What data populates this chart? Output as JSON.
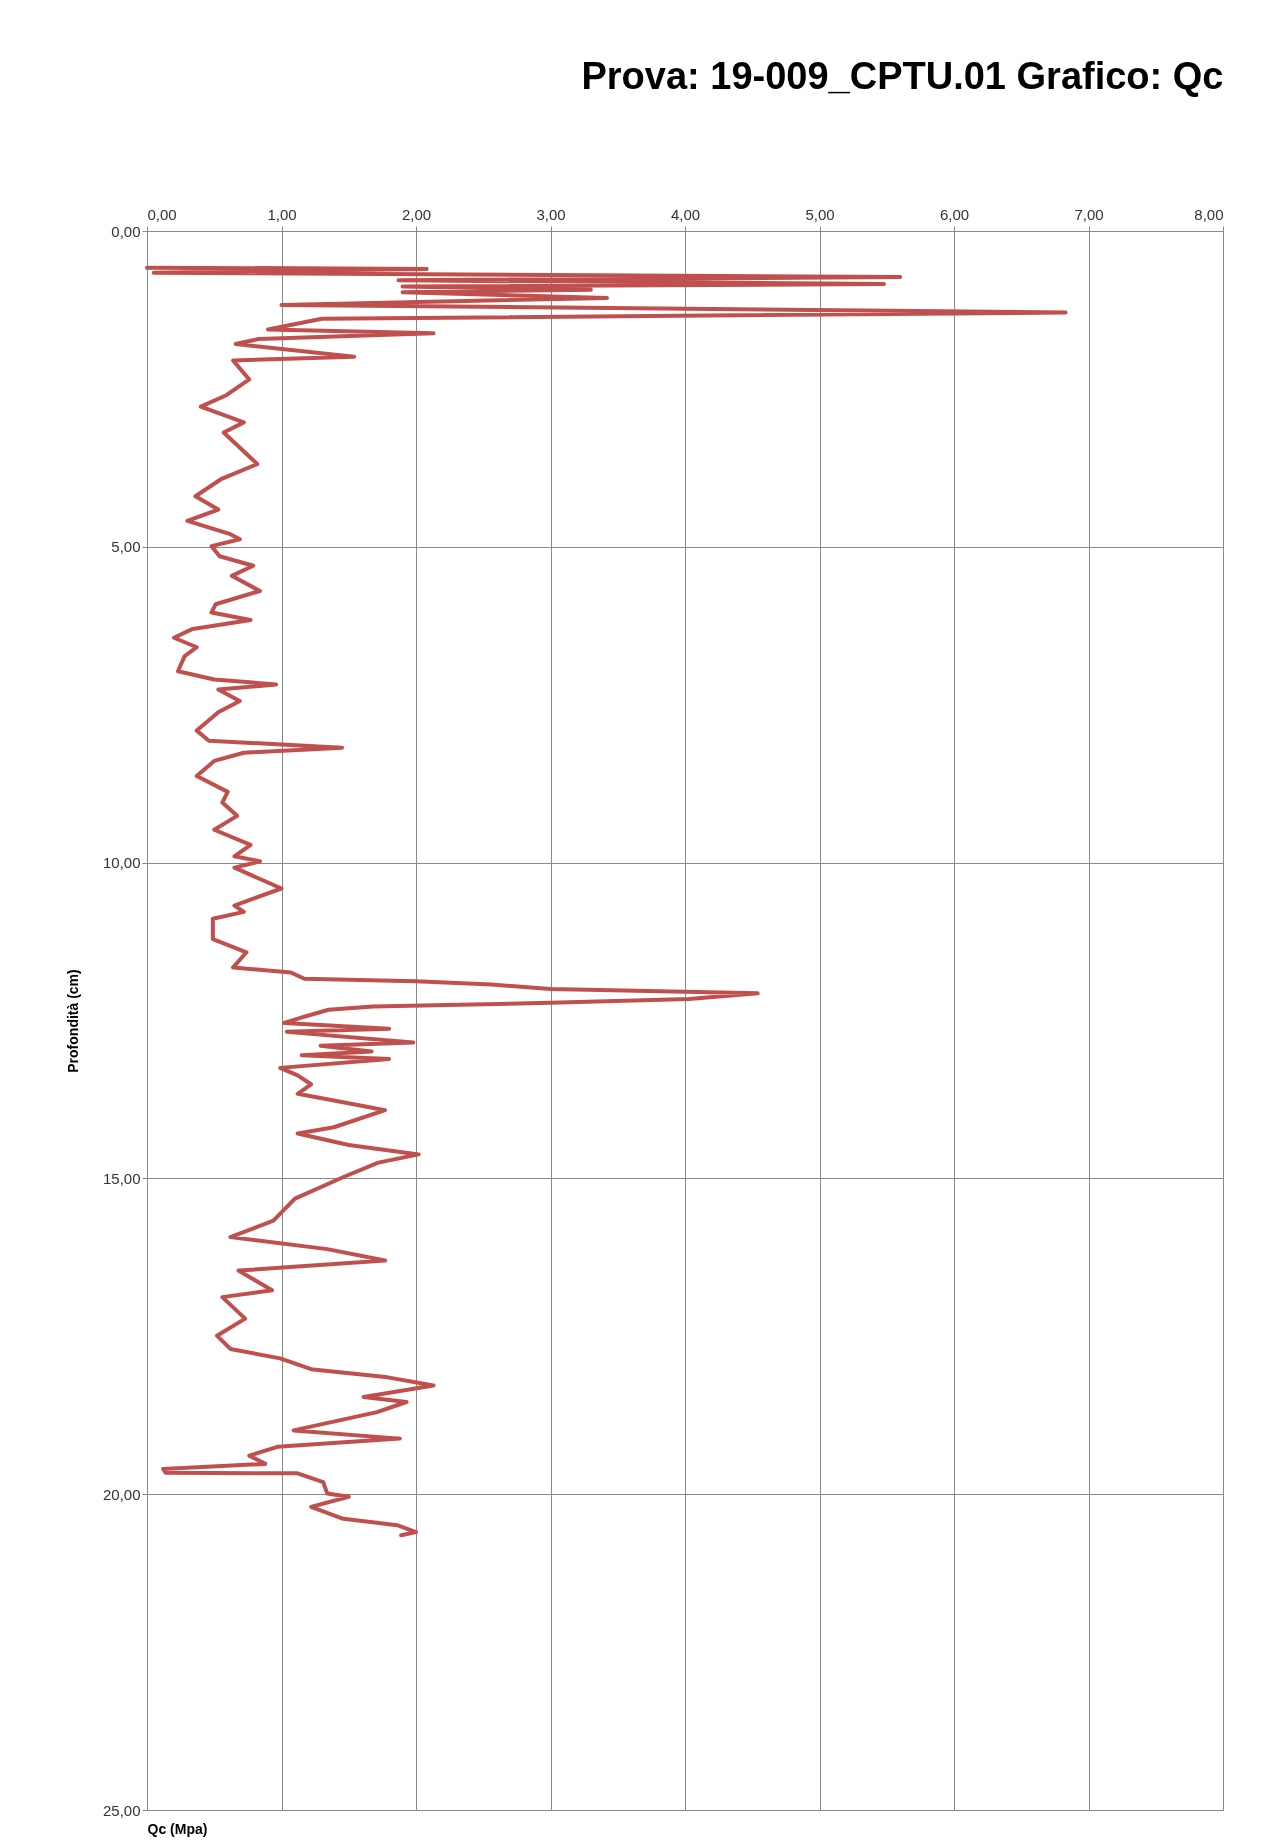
{
  "chart_data": {
    "type": "line",
    "title": "Prova: 19-009_CPTU.01          Grafico: Qc",
    "xlabel": "Qc (Mpa)",
    "ylabel": "Profondità (cm)",
    "xlim": [
      0,
      8
    ],
    "ylim": [
      25,
      0
    ],
    "xticks": [
      {
        "value": 0,
        "label": "0,00"
      },
      {
        "value": 1,
        "label": "1,00"
      },
      {
        "value": 2,
        "label": "2,00"
      },
      {
        "value": 3,
        "label": "3,00"
      },
      {
        "value": 4,
        "label": "4,00"
      },
      {
        "value": 5,
        "label": "5,00"
      },
      {
        "value": 6,
        "label": "6,00"
      },
      {
        "value": 7,
        "label": "7,00"
      },
      {
        "value": 8,
        "label": "8,00"
      }
    ],
    "yticks": [
      {
        "value": 0,
        "label": "0,00"
      },
      {
        "value": 5,
        "label": "5,00"
      },
      {
        "value": 10,
        "label": "10,00"
      },
      {
        "value": 15,
        "label": "15,00"
      },
      {
        "value": 20,
        "label": "20,00"
      },
      {
        "value": 25,
        "label": "25,00"
      }
    ],
    "grid": true,
    "marker": "none",
    "line_style": "solid",
    "series": [
      {
        "color": "#c0504d",
        "x": [
          0.0,
          2.08,
          0.05,
          5.6,
          1.87,
          5.48,
          1.9,
          3.3,
          1.9,
          3.42,
          1.0,
          6.83,
          1.3,
          0.9,
          2.13,
          0.83,
          0.66,
          1.54,
          0.64,
          0.76,
          0.59,
          0.4,
          0.72,
          0.57,
          0.82,
          0.55,
          0.36,
          0.53,
          0.3,
          0.62,
          0.69,
          0.48,
          0.54,
          0.79,
          0.63,
          0.84,
          0.51,
          0.48,
          0.77,
          0.34,
          0.2,
          0.37,
          0.28,
          0.23,
          0.5,
          0.96,
          0.53,
          0.69,
          0.53,
          0.37,
          0.46,
          1.45,
          0.72,
          0.5,
          0.37,
          0.6,
          0.56,
          0.67,
          0.5,
          0.77,
          0.65,
          0.84,
          0.65,
          1.0,
          0.65,
          0.72,
          0.49,
          0.49,
          0.74,
          0.64,
          1.07,
          1.17,
          2.0,
          2.56,
          3.0,
          4.54,
          4.03,
          3.0,
          1.68,
          1.35,
          1.17,
          1.02,
          1.8,
          1.04,
          1.98,
          1.29,
          1.67,
          1.15,
          1.8,
          0.99,
          1.12,
          1.22,
          1.12,
          1.37,
          1.77,
          1.39,
          1.12,
          1.5,
          2.02,
          1.72,
          1.47,
          1.1,
          0.94,
          0.62,
          1.34,
          1.77,
          0.68,
          0.93,
          0.56,
          0.73,
          0.52,
          0.62,
          0.99,
          1.22,
          1.79,
          2.13,
          1.61,
          1.93,
          1.71,
          1.09,
          1.88,
          0.97,
          0.76,
          0.88,
          0.12,
          0.14,
          1.12,
          1.31,
          1.34,
          1.5,
          1.22,
          1.46,
          1.86,
          2.0,
          1.89
        ],
        "values": [
          0.58,
          0.6,
          0.66,
          0.73,
          0.78,
          0.84,
          0.88,
          0.93,
          0.97,
          1.06,
          1.17,
          1.29,
          1.39,
          1.56,
          1.62,
          1.71,
          1.79,
          1.99,
          2.05,
          2.35,
          2.6,
          2.78,
          3.03,
          3.19,
          3.69,
          3.93,
          4.2,
          4.41,
          4.59,
          4.8,
          4.88,
          4.99,
          5.15,
          5.3,
          5.46,
          5.7,
          5.91,
          6.04,
          6.16,
          6.3,
          6.44,
          6.59,
          6.73,
          6.97,
          7.1,
          7.18,
          7.26,
          7.44,
          7.62,
          7.91,
          8.07,
          8.18,
          8.26,
          8.39,
          8.63,
          8.88,
          9.05,
          9.26,
          9.48,
          9.72,
          9.9,
          9.98,
          10.08,
          10.41,
          10.68,
          10.78,
          10.89,
          11.21,
          11.42,
          11.66,
          11.74,
          11.84,
          11.88,
          11.93,
          12.0,
          12.07,
          12.16,
          12.22,
          12.28,
          12.33,
          12.44,
          12.54,
          12.63,
          12.68,
          12.85,
          12.9,
          12.99,
          13.05,
          13.11,
          13.25,
          13.37,
          13.51,
          13.66,
          13.76,
          13.92,
          14.19,
          14.29,
          14.47,
          14.62,
          14.75,
          14.97,
          15.32,
          15.67,
          15.93,
          16.12,
          16.3,
          16.46,
          16.77,
          16.88,
          17.22,
          17.49,
          17.7,
          17.85,
          18.02,
          18.15,
          18.28,
          18.46,
          18.54,
          18.7,
          18.99,
          19.12,
          19.25,
          19.39,
          19.52,
          19.6,
          19.66,
          19.67,
          19.81,
          19.99,
          20.04,
          20.2,
          20.39,
          20.49,
          20.6,
          20.65
        ]
      }
    ]
  }
}
